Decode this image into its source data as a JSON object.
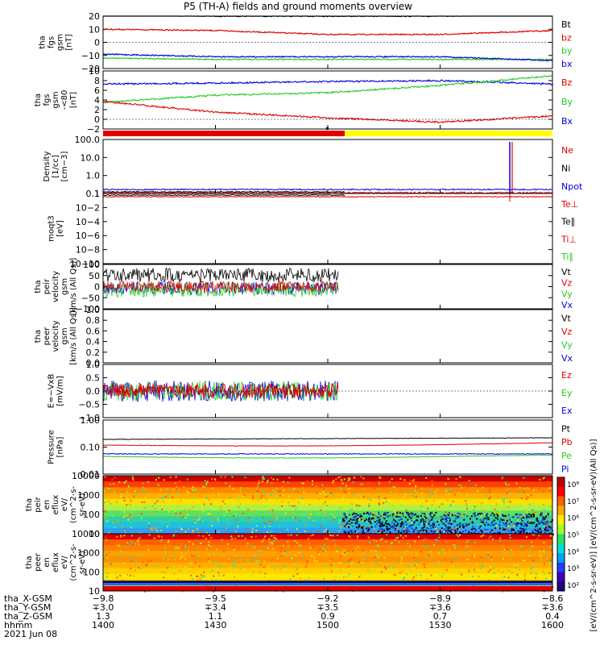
{
  "title": "P5 (TH-A) fields and ground moments overview",
  "colors": {
    "black": "#000000",
    "red": "#e00000",
    "green": "#22cc22",
    "blue": "#0000dd",
    "yellow": "#ffff00"
  },
  "panels": [
    {
      "ylabel": [
        "tha",
        "fgs",
        "gsm",
        "[nT]"
      ],
      "yticks": [
        "20",
        "10",
        "0",
        "−10",
        "−20"
      ],
      "legend": [
        "Bt",
        "bz",
        "by",
        "bx"
      ],
      "legend_colors": [
        "black",
        "red",
        "green",
        "blue"
      ]
    },
    {
      "ylabel": [
        "tha",
        "fgs",
        "gsm",
        "-<80",
        "[nT]"
      ],
      "yticks": [
        "10",
        "8",
        "6",
        "4",
        "2",
        "0",
        "−2"
      ],
      "legend": [
        "Bz",
        "By",
        "Bx"
      ],
      "legend_colors": [
        "red",
        "green",
        "blue"
      ]
    },
    {
      "ylabel": [
        "Density",
        "[1/cc]",
        "[cm−3]"
      ],
      "yticks": [
        "100.0",
        "10.0",
        "1.0",
        "0.1"
      ],
      "legend": [
        "Ne",
        "Ni",
        "Npot"
      ],
      "legend_colors": [
        "red",
        "black",
        "blue"
      ]
    },
    {
      "ylabel": [
        "moqt3",
        "[eV]"
      ],
      "yticks": [
        "1",
        "10−2",
        "10−4",
        "10−6",
        "10−8",
        "10−10"
      ],
      "legend": [
        "Te⊥",
        "Te∥",
        "Ti⊥",
        "Ti∥"
      ],
      "legend_colors": [
        "red",
        "black",
        "red",
        "green"
      ]
    },
    {
      "ylabel": [
        "tha",
        "peir",
        "velocity",
        "gsm",
        "[km/s (All Qs)]"
      ],
      "yticks": [
        "100",
        "50",
        "0",
        "−50",
        "−100"
      ],
      "legend": [
        "Vt",
        "Vz",
        "Vy",
        "Vx"
      ],
      "legend_colors": [
        "black",
        "red",
        "green",
        "blue"
      ]
    },
    {
      "ylabel": [
        "tha",
        "peer",
        "velocity",
        "gsm",
        "[km/s (All Qs)]"
      ],
      "yticks": [
        "1.0",
        "0.8",
        "0.6",
        "0.4",
        "0.2",
        "0.0"
      ],
      "legend": [
        "Vt",
        "Vz",
        "Vy",
        "Vx"
      ],
      "legend_colors": [
        "black",
        "red",
        "green",
        "blue"
      ]
    },
    {
      "ylabel": [
        "E=−VxB",
        "[mV/m]"
      ],
      "yticks": [
        "1.0",
        "0.5",
        "0.0",
        "−0.5",
        "−1.0"
      ],
      "legend": [
        "Ez",
        "Ey",
        "Ex"
      ],
      "legend_colors": [
        "red",
        "green",
        "blue"
      ]
    },
    {
      "ylabel": [
        "Pressure",
        "[nPa]"
      ],
      "yticks": [
        "1.00",
        "0.10",
        "0.01"
      ],
      "legend": [
        "Pt",
        "Pb",
        "Pe",
        "Pi"
      ],
      "legend_colors": [
        "black",
        "red",
        "green",
        "blue"
      ]
    },
    {
      "ylabel": [
        "tha",
        "peir",
        "en",
        "eflux",
        "eV/",
        "(cm^2-s-",
        "sr-eV)"
      ],
      "yticks": [
        "10000",
        "1000",
        "100",
        "10"
      ]
    },
    {
      "ylabel": [
        "tha",
        "peer",
        "en",
        "eflux",
        "eV/",
        "(cm^2-s-",
        "sr-eV)"
      ],
      "yticks": [
        "10000",
        "1000",
        "100",
        "10"
      ]
    }
  ],
  "colorbar": {
    "ticks": [
      "10⁸",
      "10⁷",
      "10⁶",
      "10⁵",
      "10⁴",
      "10³",
      "10²"
    ],
    "label": "[eV/(cm^2-s-sr-eV)] [eV/(cm^2-s-sr-eV)(All Qs)]"
  },
  "xaxis": {
    "rows": [
      {
        "name": "tha_X-GSM",
        "values": [
          "−9.8",
          "−9.5",
          "−9.2",
          "−8.9",
          "−8.6"
        ]
      },
      {
        "name": "tha_Y-GSM",
        "values": [
          "∓3.0",
          "∓3.4",
          "∓3.5",
          "∓3.6",
          "∓3.6"
        ]
      },
      {
        "name": "tha_Z-GSM",
        "values": [
          "1.3",
          "1.1",
          "0.9",
          "0.7",
          "0.4"
        ]
      },
      {
        "name": "hhmm",
        "values": [
          "1400",
          "1430",
          "1500",
          "1530",
          "1600"
        ]
      }
    ],
    "date": "2021 Jun 08"
  },
  "chart_data": {
    "type": "line",
    "x_time": [
      "1400",
      "1430",
      "1500",
      "1530",
      "1600"
    ],
    "series": [
      {
        "name": "Bt",
        "values": [
          21,
          20,
          20,
          20,
          21
        ]
      },
      {
        "name": "bz",
        "values": [
          10,
          9,
          6,
          6,
          9
        ]
      },
      {
        "name": "by",
        "values": [
          -12,
          -13,
          -13,
          -13,
          -13
        ]
      },
      {
        "name": "bx",
        "values": [
          -9,
          -11,
          -11,
          -11,
          -14
        ]
      },
      {
        "name": "Bz",
        "values": [
          3.7,
          1.5,
          0.3,
          -0.6,
          0.7
        ]
      },
      {
        "name": "By",
        "values": [
          3.5,
          5.0,
          5.5,
          7.0,
          9.0
        ]
      },
      {
        "name": "Bx",
        "values": [
          7.3,
          7.5,
          7.8,
          8.0,
          7.3
        ]
      }
    ]
  }
}
